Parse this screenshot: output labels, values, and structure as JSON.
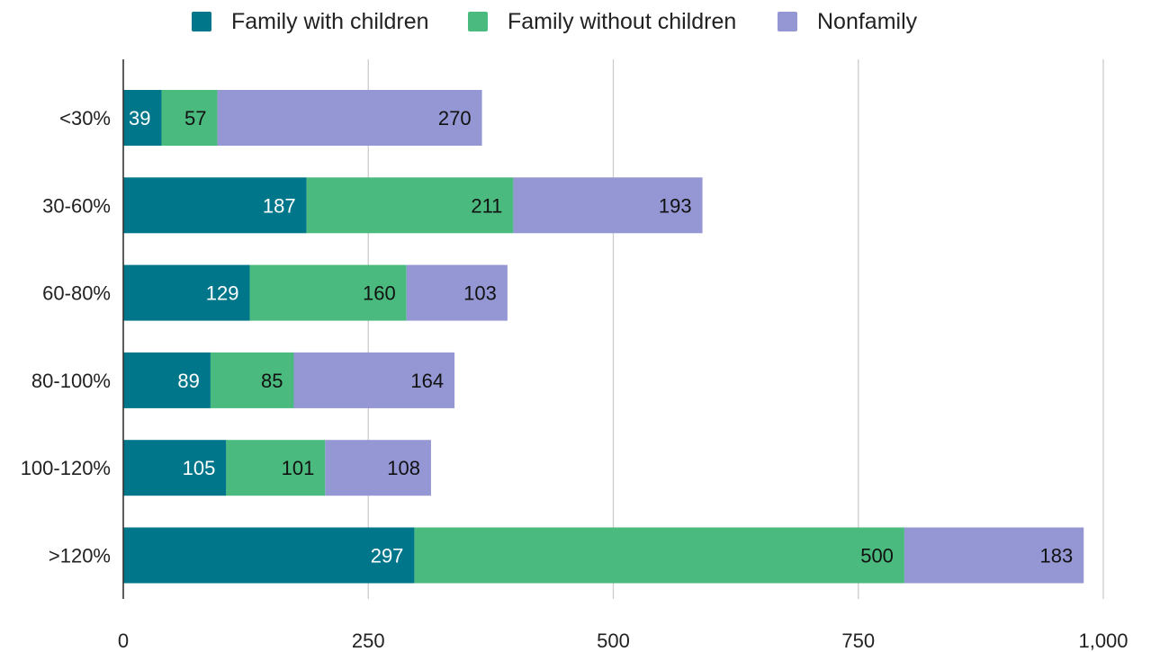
{
  "chart_data": {
    "type": "bar",
    "orientation": "horizontal",
    "stacked": true,
    "categories": [
      "<30%",
      "30-60%",
      "60-80%",
      "80-100%",
      "100-120%",
      ">120%"
    ],
    "series": [
      {
        "name": "Family with children",
        "color": "#00768a",
        "label_color": "#ffffff",
        "values": [
          39,
          187,
          129,
          89,
          105,
          297
        ]
      },
      {
        "name": "Family without children",
        "color": "#4bba7e",
        "label_color": "#111111",
        "values": [
          57,
          211,
          160,
          85,
          101,
          500
        ]
      },
      {
        "name": "Nonfamily",
        "color": "#9497d3",
        "label_color": "#111111",
        "values": [
          270,
          193,
          103,
          164,
          108,
          183
        ]
      }
    ],
    "x_ticks": [
      "0",
      "250",
      "500",
      "750",
      "1,000"
    ],
    "x_tick_values": [
      0,
      250,
      500,
      750,
      1000
    ],
    "xlim": [
      0,
      1000
    ],
    "grid": true,
    "legend_position": "top"
  }
}
